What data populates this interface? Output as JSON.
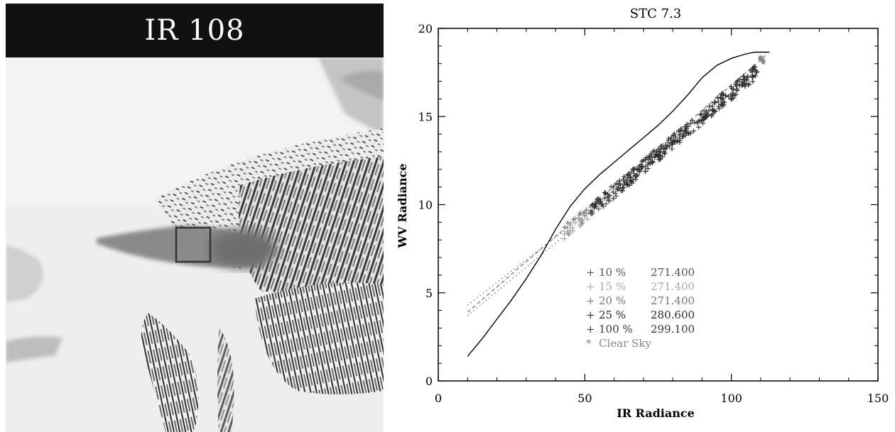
{
  "image_panel": {
    "title": "IR 108"
  },
  "chart_data": {
    "type": "scatter",
    "title": "STC 7.3",
    "xlabel": "IR Radiance",
    "ylabel": "WV Radiance",
    "xlim": [
      0,
      150
    ],
    "ylim": [
      0,
      20
    ],
    "xticks": [
      0,
      50,
      100,
      150
    ],
    "yticks": [
      0,
      5,
      10,
      15,
      20
    ],
    "grid": false,
    "legend_position": "center",
    "legend": [
      {
        "symbol": "+",
        "label": "10 %",
        "value": "271.400",
        "color": "#555555"
      },
      {
        "symbol": "+",
        "label": "15 %",
        "value": "271.400",
        "color": "#aaaaaa"
      },
      {
        "symbol": "+",
        "label": "20 %",
        "value": "271.400",
        "color": "#777777"
      },
      {
        "symbol": "+",
        "label": "25 %",
        "value": "280.600",
        "color": "#2a2a2a"
      },
      {
        "symbol": "+",
        "label": "100 %",
        "value": "299.100",
        "color": "#3a3a3a"
      },
      {
        "symbol": "*",
        "label": "Clear Sky",
        "value": "",
        "color": "#888888"
      }
    ],
    "reference_curve": {
      "x": [
        10,
        15,
        20,
        25,
        30,
        35,
        40,
        45,
        50,
        55,
        60,
        65,
        70,
        75,
        80,
        85,
        90,
        95,
        100,
        105,
        108,
        113
      ],
      "y": [
        1.4,
        2.4,
        3.5,
        4.6,
        5.8,
        7.1,
        8.6,
        9.9,
        10.9,
        11.7,
        12.4,
        13.1,
        13.8,
        14.5,
        15.3,
        16.2,
        17.2,
        17.9,
        18.3,
        18.55,
        18.65,
        18.65
      ]
    },
    "dashed_line": {
      "x": [
        10,
        112
      ],
      "y": [
        3.9,
        18.5
      ]
    },
    "dotted_lines": [
      {
        "x": [
          10,
          45
        ],
        "y": [
          4.3,
          8.8
        ]
      },
      {
        "x": [
          10,
          45
        ],
        "y": [
          3.7,
          8.5
        ]
      }
    ],
    "scatter_band": {
      "x_start": 43,
      "x_end": 109,
      "y_start": 8.4,
      "y_end": 17.6
    },
    "clear_sky": {
      "x": 110.5,
      "y": 18.2
    }
  }
}
